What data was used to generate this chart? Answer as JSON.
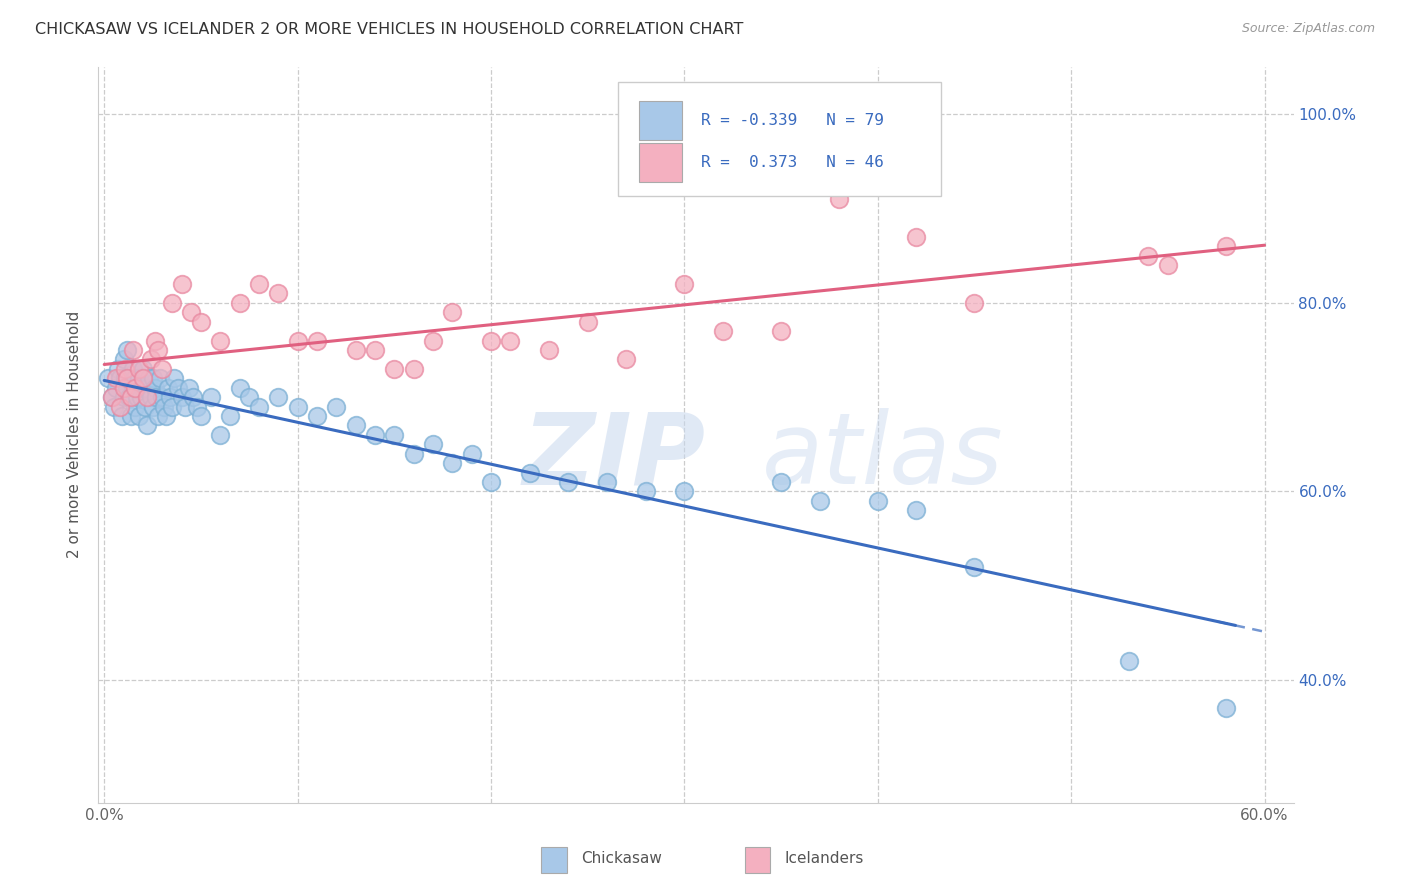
{
  "title": "CHICKASAW VS ICELANDER 2 OR MORE VEHICLES IN HOUSEHOLD CORRELATION CHART",
  "source": "Source: ZipAtlas.com",
  "ylabel": "2 or more Vehicles in Household",
  "xlim": [
    -0.003,
    0.615
  ],
  "ylim": [
    0.27,
    1.05
  ],
  "xticks": [
    0.0,
    0.1,
    0.2,
    0.3,
    0.4,
    0.5,
    0.6
  ],
  "xticklabels": [
    "0.0%",
    "",
    "",
    "",
    "",
    "",
    "60.0%"
  ],
  "yticks": [
    0.4,
    0.6,
    0.8,
    1.0
  ],
  "yticklabels": [
    "40.0%",
    "60.0%",
    "80.0%",
    "100.0%"
  ],
  "chickasaw_color": "#a8c8e8",
  "chickasaw_edge": "#7bafd4",
  "icelander_color": "#f4b0c0",
  "icelander_edge": "#e888a0",
  "trend_blue": "#3a6bbf",
  "trend_pink": "#e06080",
  "background_color": "#ffffff",
  "grid_color": "#cccccc",
  "chickasaw_x": [
    0.002,
    0.004,
    0.005,
    0.006,
    0.007,
    0.008,
    0.009,
    0.01,
    0.01,
    0.011,
    0.012,
    0.012,
    0.013,
    0.014,
    0.015,
    0.015,
    0.016,
    0.016,
    0.017,
    0.018,
    0.018,
    0.019,
    0.02,
    0.02,
    0.021,
    0.022,
    0.022,
    0.023,
    0.024,
    0.025,
    0.025,
    0.026,
    0.027,
    0.028,
    0.029,
    0.03,
    0.031,
    0.032,
    0.033,
    0.034,
    0.035,
    0.036,
    0.038,
    0.04,
    0.042,
    0.044,
    0.046,
    0.048,
    0.05,
    0.055,
    0.06,
    0.065,
    0.07,
    0.075,
    0.08,
    0.09,
    0.1,
    0.11,
    0.12,
    0.13,
    0.14,
    0.15,
    0.16,
    0.17,
    0.18,
    0.19,
    0.2,
    0.22,
    0.24,
    0.26,
    0.28,
    0.3,
    0.35,
    0.37,
    0.4,
    0.42,
    0.45,
    0.53,
    0.58
  ],
  "chickasaw_y": [
    0.72,
    0.7,
    0.69,
    0.71,
    0.73,
    0.72,
    0.68,
    0.7,
    0.74,
    0.72,
    0.71,
    0.75,
    0.7,
    0.68,
    0.73,
    0.71,
    0.69,
    0.72,
    0.7,
    0.68,
    0.72,
    0.7,
    0.71,
    0.73,
    0.69,
    0.71,
    0.67,
    0.72,
    0.7,
    0.69,
    0.72,
    0.71,
    0.7,
    0.68,
    0.72,
    0.7,
    0.69,
    0.68,
    0.71,
    0.7,
    0.69,
    0.72,
    0.71,
    0.7,
    0.69,
    0.71,
    0.7,
    0.69,
    0.68,
    0.7,
    0.66,
    0.68,
    0.71,
    0.7,
    0.69,
    0.7,
    0.69,
    0.68,
    0.69,
    0.67,
    0.66,
    0.66,
    0.64,
    0.65,
    0.63,
    0.64,
    0.61,
    0.62,
    0.61,
    0.61,
    0.6,
    0.6,
    0.61,
    0.59,
    0.59,
    0.58,
    0.52,
    0.42,
    0.37
  ],
  "icelander_x": [
    0.004,
    0.006,
    0.008,
    0.01,
    0.011,
    0.012,
    0.014,
    0.015,
    0.016,
    0.018,
    0.02,
    0.022,
    0.024,
    0.026,
    0.028,
    0.03,
    0.035,
    0.04,
    0.045,
    0.05,
    0.06,
    0.07,
    0.08,
    0.09,
    0.1,
    0.11,
    0.13,
    0.14,
    0.15,
    0.16,
    0.17,
    0.18,
    0.2,
    0.21,
    0.23,
    0.25,
    0.27,
    0.3,
    0.32,
    0.35,
    0.38,
    0.42,
    0.45,
    0.54,
    0.55,
    0.58
  ],
  "icelander_y": [
    0.7,
    0.72,
    0.69,
    0.71,
    0.73,
    0.72,
    0.7,
    0.75,
    0.71,
    0.73,
    0.72,
    0.7,
    0.74,
    0.76,
    0.75,
    0.73,
    0.8,
    0.82,
    0.79,
    0.78,
    0.76,
    0.8,
    0.82,
    0.81,
    0.76,
    0.76,
    0.75,
    0.75,
    0.73,
    0.73,
    0.76,
    0.79,
    0.76,
    0.76,
    0.75,
    0.78,
    0.74,
    0.82,
    0.77,
    0.77,
    0.91,
    0.87,
    0.8,
    0.85,
    0.84,
    0.86
  ],
  "legend_blue_text": "#3a6bbf",
  "legend_box_edge": "#cccccc"
}
